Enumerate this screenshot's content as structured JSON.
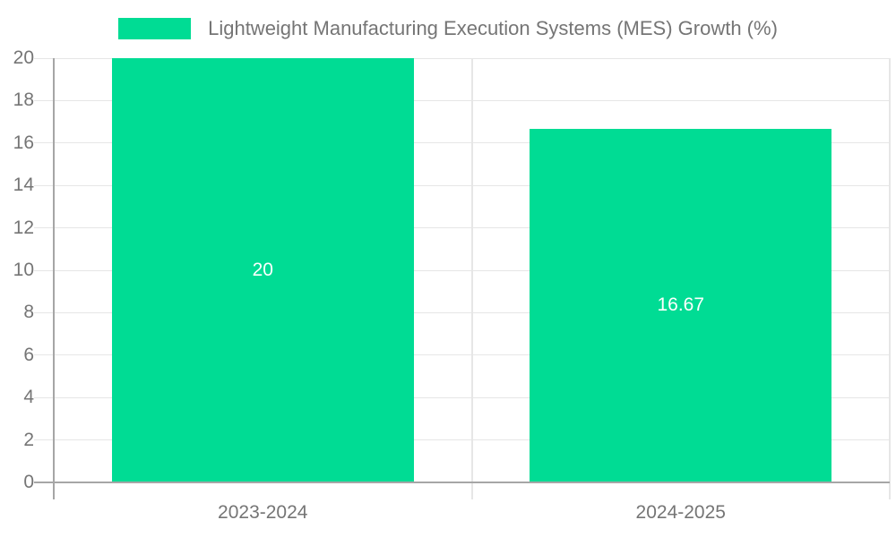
{
  "legend": {
    "label": "Lightweight Manufacturing Execution Systems (MES) Growth (%)"
  },
  "chart_data": {
    "type": "bar",
    "title": "Lightweight Manufacturing Execution Systems (MES) Growth (%)",
    "categories": [
      "2023-2024",
      "2024-2025"
    ],
    "values": [
      20,
      16.67
    ],
    "bar_labels": [
      "20",
      "16.67"
    ],
    "yticks": [
      0,
      2,
      4,
      6,
      8,
      10,
      12,
      14,
      16,
      18,
      20
    ],
    "ylim": [
      0,
      20
    ],
    "xlabel": "",
    "ylabel": "",
    "grid": true,
    "legend_position": "top-center",
    "colors": {
      "bar": "#00DC94",
      "bar_value_text": "#ffffff",
      "axis_text": "#757575",
      "axis_line": "#a6a6a6",
      "gridline": "#e6e6e6",
      "background": "#ffffff"
    }
  }
}
